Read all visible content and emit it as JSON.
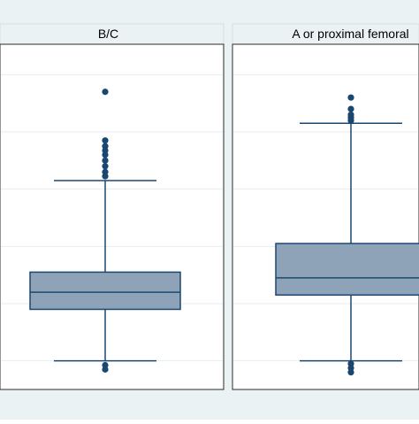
{
  "chart_data": {
    "type": "boxplot",
    "y_axis_ticks_visible": false,
    "grid": true,
    "colors": {
      "background": "#eaf2f3",
      "plot_background": "#ffffff",
      "box_fill": "#8fa3b8",
      "box_stroke": "#1a476f",
      "whisker": "#1a476f",
      "outlier": "#1a476f",
      "grid": "#e6eef0",
      "header_fill": "#eaf2f3",
      "header_text": "#000000"
    },
    "panels": [
      {
        "label": "B/C",
        "q1": 58,
        "median": 64,
        "q3": 71,
        "whisker_low": 40,
        "whisker_high": 103,
        "outliers": [
          134,
          117,
          104.5,
          106,
          108,
          110,
          112,
          113.5,
          115,
          37,
          38.5
        ]
      },
      {
        "label": "A or proximal femoral",
        "q1": 63,
        "median": 69,
        "q3": 81,
        "whisker_low": 40,
        "whisker_high": 123,
        "outliers": [
          128,
          126,
          124,
          125,
          132,
          37.5,
          39,
          36
        ]
      }
    ]
  }
}
